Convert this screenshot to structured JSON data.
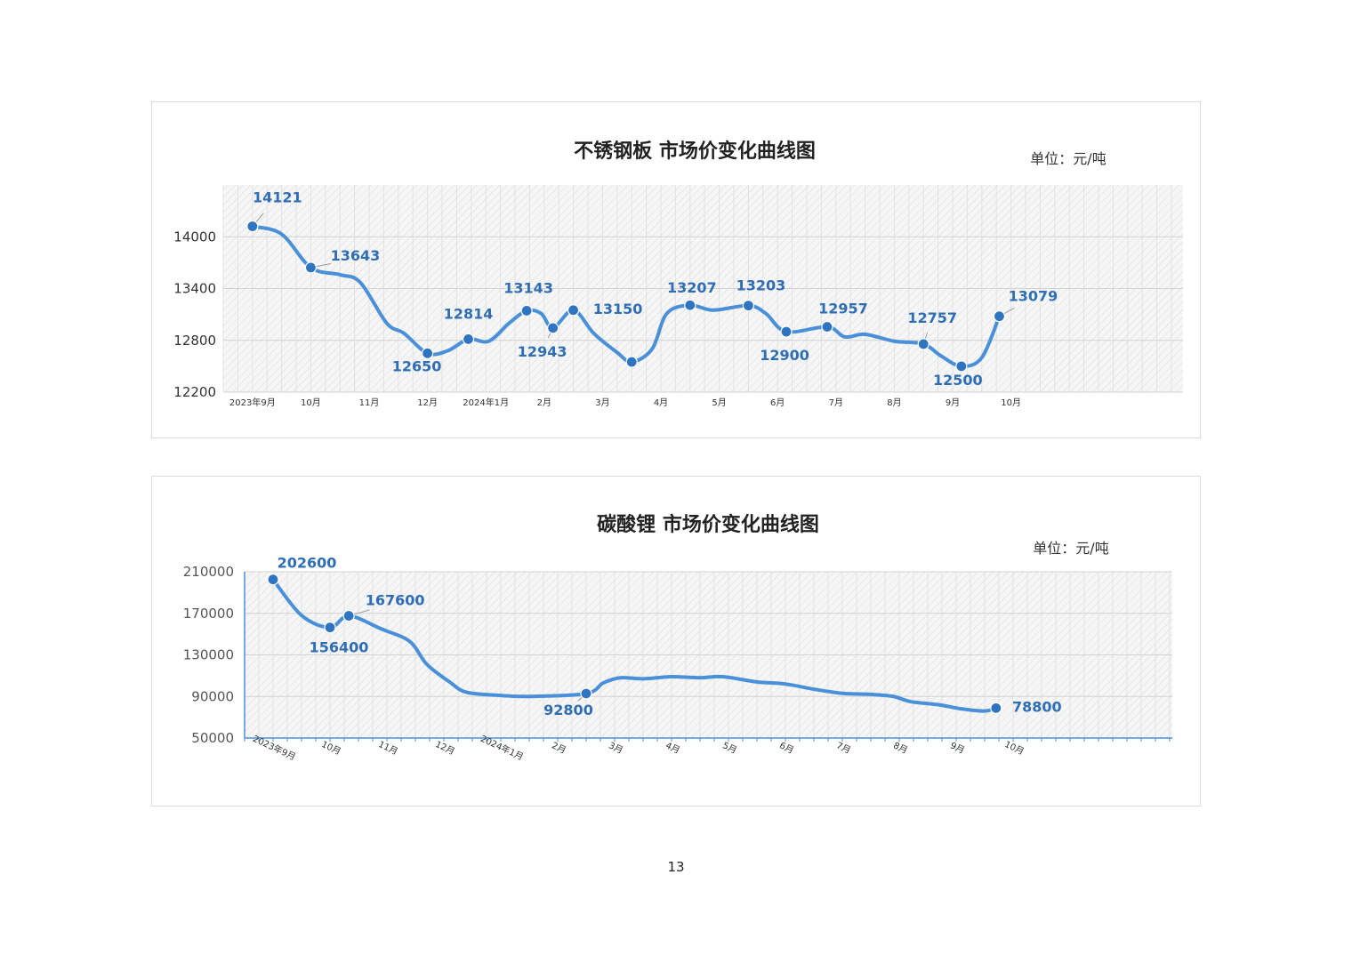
{
  "colors": {
    "line": "#4a90d9",
    "marker": "#2f74c0",
    "label": "#2f6eb5"
  },
  "page_number": "13",
  "chart_data": [
    {
      "type": "line",
      "title": "不锈钢板 市场价变化曲线图",
      "unit": "单位：元/吨",
      "ylim": [
        12200,
        14600
      ],
      "yticks": [
        12200,
        12800,
        13400,
        14000
      ],
      "xticks": [
        "2023年9月",
        "10月",
        "11月",
        "12月",
        "2024年1月",
        "2月",
        "3月",
        "4月",
        "5月",
        "6月",
        "7月",
        "8月",
        "9月",
        "10月"
      ],
      "grid": true,
      "points": [
        {
          "x": 0.5,
          "y": 14121,
          "label": "14121"
        },
        {
          "x": 1.5,
          "y": 13643,
          "label": "13643"
        },
        {
          "x": 3.5,
          "y": 12650,
          "label": "12650"
        },
        {
          "x": 4.2,
          "y": 12814,
          "label": "12814"
        },
        {
          "x": 5.2,
          "y": 13143,
          "label": "13143"
        },
        {
          "x": 5.65,
          "y": 12943,
          "label": "12943"
        },
        {
          "x": 6.0,
          "y": 13150,
          "label": "13150"
        },
        {
          "x": 7.0,
          "y": 12550,
          "label": ""
        },
        {
          "x": 8.0,
          "y": 13207,
          "label": "13207"
        },
        {
          "x": 9.0,
          "y": 13203,
          "label": "13203"
        },
        {
          "x": 9.65,
          "y": 12900,
          "label": "12900"
        },
        {
          "x": 10.35,
          "y": 12957,
          "label": "12957"
        },
        {
          "x": 12.0,
          "y": 12757,
          "label": "12757"
        },
        {
          "x": 12.65,
          "y": 12500,
          "label": "12500"
        },
        {
          "x": 13.3,
          "y": 13079,
          "label": "13079"
        }
      ]
    },
    {
      "type": "line",
      "title": "碳酸锂 市场价变化曲线图",
      "unit": "单位：元/吨",
      "ylim": [
        50000,
        210000
      ],
      "yticks": [
        50000,
        90000,
        130000,
        170000,
        210000
      ],
      "xticks": [
        "2023年9月",
        "10月",
        "11月",
        "12月",
        "2024年1月",
        "2月",
        "3月",
        "4月",
        "5月",
        "6月",
        "7月",
        "8月",
        "9月",
        "10月"
      ],
      "grid": true,
      "points": [
        {
          "x": 0.5,
          "y": 202600,
          "label": "202600"
        },
        {
          "x": 1.5,
          "y": 156400,
          "label": "156400"
        },
        {
          "x": 1.83,
          "y": 167600,
          "label": "167600"
        },
        {
          "x": 6.0,
          "y": 92800,
          "label": "92800"
        },
        {
          "x": 13.2,
          "y": 78800,
          "label": "78800"
        }
      ]
    }
  ]
}
